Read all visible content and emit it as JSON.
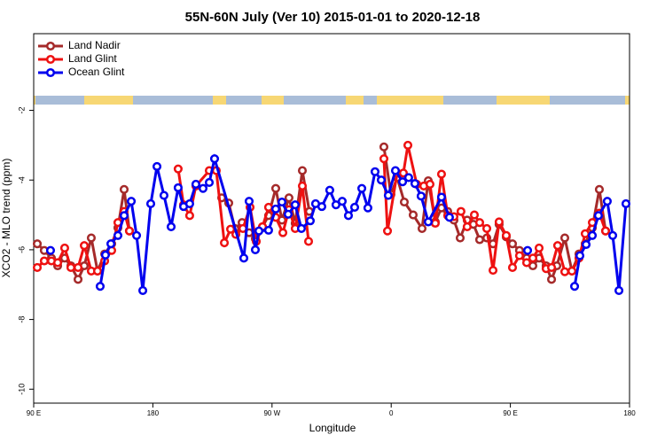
{
  "chart_data": {
    "type": "line",
    "title": "55N-60N July (Ver 10)   2015-01-01 to 2020-12-18",
    "x_label": "Longitude",
    "y_label": "XCO2 - MLO trend (ppm)",
    "xlim": [
      90,
      540
    ],
    "xticks": [
      {
        "value": 90,
        "label": "90 E"
      },
      180,
      {
        "value": 270,
        "label": "90 W"
      },
      {
        "value": 360,
        "label": "0"
      },
      {
        "value": 450,
        "label": "90 E"
      },
      {
        "value": 540,
        "label": "180"
      }
    ],
    "ylim": [
      -10.4,
      0.2
    ],
    "yticks": [
      -2,
      -4,
      -6,
      -8,
      -10
    ],
    "grid": false,
    "legend": "top-left",
    "series": [
      {
        "name": "Land Nadir",
        "color": "#a52a2a",
        "x": [
          92.7,
          98.0,
          103.4,
          108.1,
          113.4,
          118.1,
          123.5,
          128.2,
          133.5,
          138.2,
          143.6,
          148.9,
          153.6,
          158.3,
          162.3,
          232.0,
          237.3,
          242.0,
          247.4,
          252.7,
          257.4,
          262.8,
          267.4,
          272.8,
          277.5,
          282.8,
          287.5,
          292.9,
          298.2,
          354.5,
          359.8,
          364.5,
          369.9,
          376.6,
          383.3,
          388.0,
          393.3,
          398.0,
          402.7,
          407.4,
          412.1,
          417.4,
          422.1,
          426.8,
          432.2,
          436.9,
          441.5,
          446.9,
          451.6,
          456.9,
          462.3,
          467.0,
          471.7,
          477.0,
          481.1,
          485.1,
          491.1,
          496.5,
          501.8,
          506.5,
          511.9,
          517.2,
          521.9
        ],
        "values": [
          -5.83,
          -6.02,
          -6.24,
          -6.46,
          -6.24,
          -6.46,
          -6.85,
          -6.46,
          -5.66,
          -6.61,
          -6.12,
          -5.83,
          -5.37,
          -4.27,
          -5.46,
          -4.51,
          -4.66,
          -5.39,
          -5.22,
          -5.51,
          -5.68,
          -5.34,
          -5.02,
          -4.24,
          -5.15,
          -4.51,
          -5.24,
          -3.73,
          -4.9,
          -3.05,
          -4.41,
          -3.93,
          -4.63,
          -5.0,
          -5.39,
          -4.02,
          -5.2,
          -4.8,
          -4.9,
          -5.15,
          -5.66,
          -5.15,
          -5.27,
          -5.71,
          -5.66,
          -5.83,
          -5.27,
          -5.63,
          -5.83,
          -6.02,
          -6.24,
          -6.46,
          -6.24,
          -6.46,
          -6.85,
          -6.46,
          -5.66,
          -6.61,
          -6.12,
          -5.83,
          -5.37,
          -4.27,
          -5.46
        ]
      },
      {
        "name": "Land Glint",
        "color": "#ee1111",
        "x": [
          92.7,
          98.0,
          103.4,
          108.1,
          113.4,
          118.1,
          123.5,
          128.2,
          133.5,
          138.2,
          143.6,
          148.9,
          153.6,
          158.3,
          162.3,
          199.1,
          203.2,
          207.8,
          212.5,
          222.6,
          227.9,
          234.0,
          238.7,
          242.7,
          248.0,
          253.4,
          258.1,
          262.8,
          267.4,
          272.8,
          278.2,
          282.8,
          287.5,
          292.9,
          297.6,
          354.5,
          357.2,
          364.5,
          369.2,
          372.6,
          379.3,
          384.6,
          389.3,
          393.3,
          398.0,
          402.7,
          407.4,
          412.7,
          417.4,
          422.8,
          426.8,
          432.2,
          436.9,
          441.5,
          446.9,
          451.6,
          456.9,
          462.3,
          467.0,
          471.7,
          477.0,
          481.1,
          485.7,
          491.1,
          496.5,
          501.8,
          506.5,
          511.9,
          517.2,
          521.9
        ],
        "values": [
          -6.51,
          -6.32,
          -6.32,
          -6.37,
          -5.95,
          -6.51,
          -6.51,
          -5.88,
          -6.61,
          -6.61,
          -6.32,
          -6.02,
          -5.22,
          -4.9,
          -5.46,
          -3.68,
          -4.71,
          -5.02,
          -4.17,
          -3.73,
          -3.73,
          -5.8,
          -5.41,
          -5.56,
          -5.39,
          -4.78,
          -5.76,
          -5.34,
          -4.78,
          -5.07,
          -5.51,
          -4.85,
          -5.39,
          -4.17,
          -5.76,
          -3.39,
          -5.46,
          -3.8,
          -3.8,
          -3.0,
          -4.12,
          -4.17,
          -4.12,
          -5.24,
          -3.83,
          -5.02,
          -5.05,
          -4.9,
          -5.34,
          -5.0,
          -5.22,
          -5.39,
          -6.59,
          -5.2,
          -5.59,
          -6.51,
          -6.17,
          -6.37,
          -6.24,
          -5.95,
          -6.54,
          -6.51,
          -5.88,
          -6.63,
          -6.61,
          -6.24,
          -5.54,
          -5.22,
          -4.95,
          -5.46
        ]
      },
      {
        "name": "Ocean Glint",
        "color": "#0000ee",
        "x": [
          102.7,
          140.2,
          144.2,
          148.3,
          153.6,
          158.3,
          163.7,
          167.7,
          172.4,
          178.4,
          183.1,
          188.4,
          193.8,
          199.1,
          203.2,
          207.8,
          212.5,
          217.9,
          222.6,
          226.6,
          248.7,
          252.7,
          257.4,
          260.1,
          267.4,
          272.8,
          277.5,
          282.2,
          287.5,
          292.2,
          298.9,
          302.9,
          307.6,
          313.6,
          318.3,
          323.0,
          327.7,
          332.4,
          337.8,
          342.4,
          347.8,
          352.5,
          357.8,
          363.2,
          368.6,
          373.2,
          377.9,
          382.6,
          388.0,
          398.0,
          404.0,
          463.0,
          498.5,
          502.5,
          507.2,
          511.9,
          516.5,
          523.2,
          527.3,
          532.0,
          537.3
        ],
        "values": [
          -6.02,
          -7.05,
          -6.15,
          -5.83,
          -5.59,
          -5.02,
          -4.61,
          -5.59,
          -7.17,
          -4.68,
          -3.61,
          -4.44,
          -5.34,
          -4.22,
          -4.76,
          -4.68,
          -4.12,
          -4.24,
          -4.07,
          -3.39,
          -6.24,
          -4.61,
          -6.0,
          -5.46,
          -5.44,
          -4.83,
          -4.63,
          -4.98,
          -4.71,
          -5.39,
          -5.17,
          -4.68,
          -4.76,
          -4.29,
          -4.71,
          -4.61,
          -5.02,
          -4.78,
          -4.24,
          -4.8,
          -3.76,
          -4.0,
          -4.44,
          -3.73,
          -4.05,
          -3.93,
          -4.1,
          -4.46,
          -5.2,
          -4.49,
          -5.07,
          -6.02,
          -7.05,
          -6.17,
          -5.85,
          -5.59,
          -5.02,
          -4.61,
          -5.59,
          -7.17,
          -4.68
        ]
      }
    ]
  }
}
